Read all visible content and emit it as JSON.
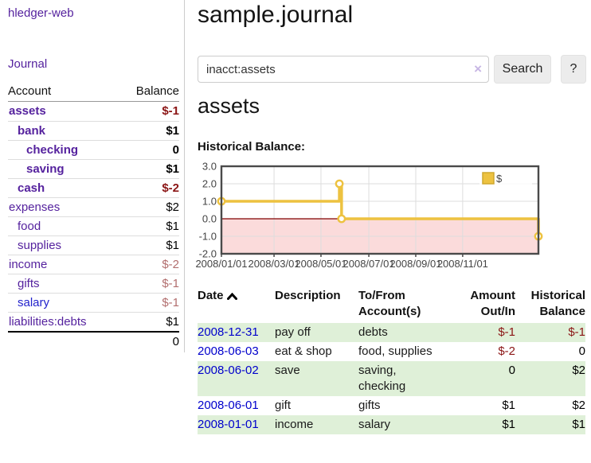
{
  "app": {
    "brand": "hledger-web"
  },
  "nav": {
    "journal_label": "Journal"
  },
  "sidebar": {
    "columns": {
      "account": "Account",
      "balance": "Balance"
    },
    "accounts": [
      {
        "name": "assets",
        "balance": "$-1",
        "level": 1,
        "bold": true,
        "balance_style": "neg-strong",
        "link_style": "visited"
      },
      {
        "name": "bank",
        "balance": "$1",
        "level": 2,
        "bold": true,
        "balance_style": "pos",
        "link_style": "visited"
      },
      {
        "name": "checking",
        "balance": "0",
        "level": 3,
        "bold": true,
        "balance_style": "pos",
        "link_style": "visited"
      },
      {
        "name": "saving",
        "balance": "$1",
        "level": 3,
        "bold": true,
        "balance_style": "pos",
        "link_style": "visited"
      },
      {
        "name": "cash",
        "balance": "$-2",
        "level": 2,
        "bold": true,
        "balance_style": "neg-strong",
        "link_style": "visited"
      },
      {
        "name": "expenses",
        "balance": "$2",
        "level": 1,
        "bold": false,
        "balance_style": "pos",
        "link_style": "visited"
      },
      {
        "name": "food",
        "balance": "$1",
        "level": 2,
        "bold": false,
        "balance_style": "pos",
        "link_style": "visited"
      },
      {
        "name": "supplies",
        "balance": "$1",
        "level": 2,
        "bold": false,
        "balance_style": "pos",
        "link_style": "visited"
      },
      {
        "name": "income",
        "balance": "$-2",
        "level": 1,
        "bold": false,
        "balance_style": "neg-soft",
        "link_style": "visited"
      },
      {
        "name": "gifts",
        "balance": "$-1",
        "level": 2,
        "bold": false,
        "balance_style": "neg-soft",
        "link_style": "visited"
      },
      {
        "name": "salary",
        "balance": "$-1",
        "level": 2,
        "bold": false,
        "balance_style": "neg-soft",
        "link_style": "unvisited"
      },
      {
        "name": "liabilities:debts",
        "balance": "$1",
        "level": 1,
        "bold": false,
        "balance_style": "pos",
        "link_style": "visited"
      }
    ],
    "total": "0"
  },
  "header": {
    "title": "sample.journal"
  },
  "search": {
    "value": "inacct:assets",
    "clear_icon": "×",
    "button_label": "Search",
    "help_label": "?"
  },
  "account_page": {
    "heading": "assets",
    "chart_label": "Historical Balance:"
  },
  "chart_data": {
    "type": "line",
    "step": true,
    "title": "Historical Balance:",
    "ylim": [
      -2.0,
      3.0
    ],
    "yticks": [
      "3.0",
      "2.0",
      "1.0",
      "0.0",
      "-1.0",
      "-2.0"
    ],
    "ytick_values": [
      3,
      2,
      1,
      0,
      -1,
      -2
    ],
    "xticks": [
      {
        "label": "2008/01/01",
        "xf": 0.0
      },
      {
        "label": "2008/03/01",
        "xf": 0.166
      },
      {
        "label": "2008/05/01",
        "xf": 0.314
      },
      {
        "label": "2008/07/01",
        "xf": 0.465
      },
      {
        "label": "2008/09/01",
        "xf": 0.613
      },
      {
        "label": "2008/11/01",
        "xf": 0.761
      }
    ],
    "series": [
      {
        "name": "$",
        "color": "#edc240",
        "points": [
          {
            "date": "2008/01/01",
            "value": 1.0,
            "xf": 0.0
          },
          {
            "date": "2008/06/01",
            "value": 2.0,
            "xf": 0.372
          },
          {
            "date": "2008/06/03",
            "value": 0.0,
            "xf": 0.379
          },
          {
            "date": "2008/12/31",
            "value": -1.0,
            "xf": 1.0
          }
        ]
      }
    ],
    "zero_line_color": "#800000",
    "negative_fill": "#fbdbdb",
    "grid": true,
    "legend_position": "top-right",
    "legend_label": "$"
  },
  "register": {
    "columns": {
      "date": "Date",
      "sort_icon": "chevron-up",
      "description": "Description",
      "accounts_line1": "To/From",
      "accounts_line2": "Account(s)",
      "amount_line1": "Amount",
      "amount_line2": "Out/In",
      "balance_line1": "Historical",
      "balance_line2": "Balance"
    },
    "rows": [
      {
        "date": "2008-12-31",
        "description": "pay off",
        "accounts": "debts",
        "amount": "$-1",
        "amount_negative": true,
        "balance": "$-1",
        "balance_negative": true,
        "shaded": true
      },
      {
        "date": "2008-06-03",
        "description": "eat & shop",
        "accounts": "food, supplies",
        "amount": "$-2",
        "amount_negative": true,
        "balance": "0",
        "balance_negative": false,
        "shaded": false
      },
      {
        "date": "2008-06-02",
        "description": "save",
        "accounts": "saving, checking",
        "amount": "0",
        "amount_negative": false,
        "balance": "$2",
        "balance_negative": false,
        "shaded": true
      },
      {
        "date": "2008-06-01",
        "description": "gift",
        "accounts": "gifts",
        "amount": "$1",
        "amount_negative": false,
        "balance": "$2",
        "balance_negative": false,
        "shaded": false
      },
      {
        "date": "2008-01-01",
        "description": "income",
        "accounts": "salary",
        "amount": "$1",
        "amount_negative": false,
        "balance": "$1",
        "balance_negative": false,
        "shaded": true
      }
    ]
  }
}
